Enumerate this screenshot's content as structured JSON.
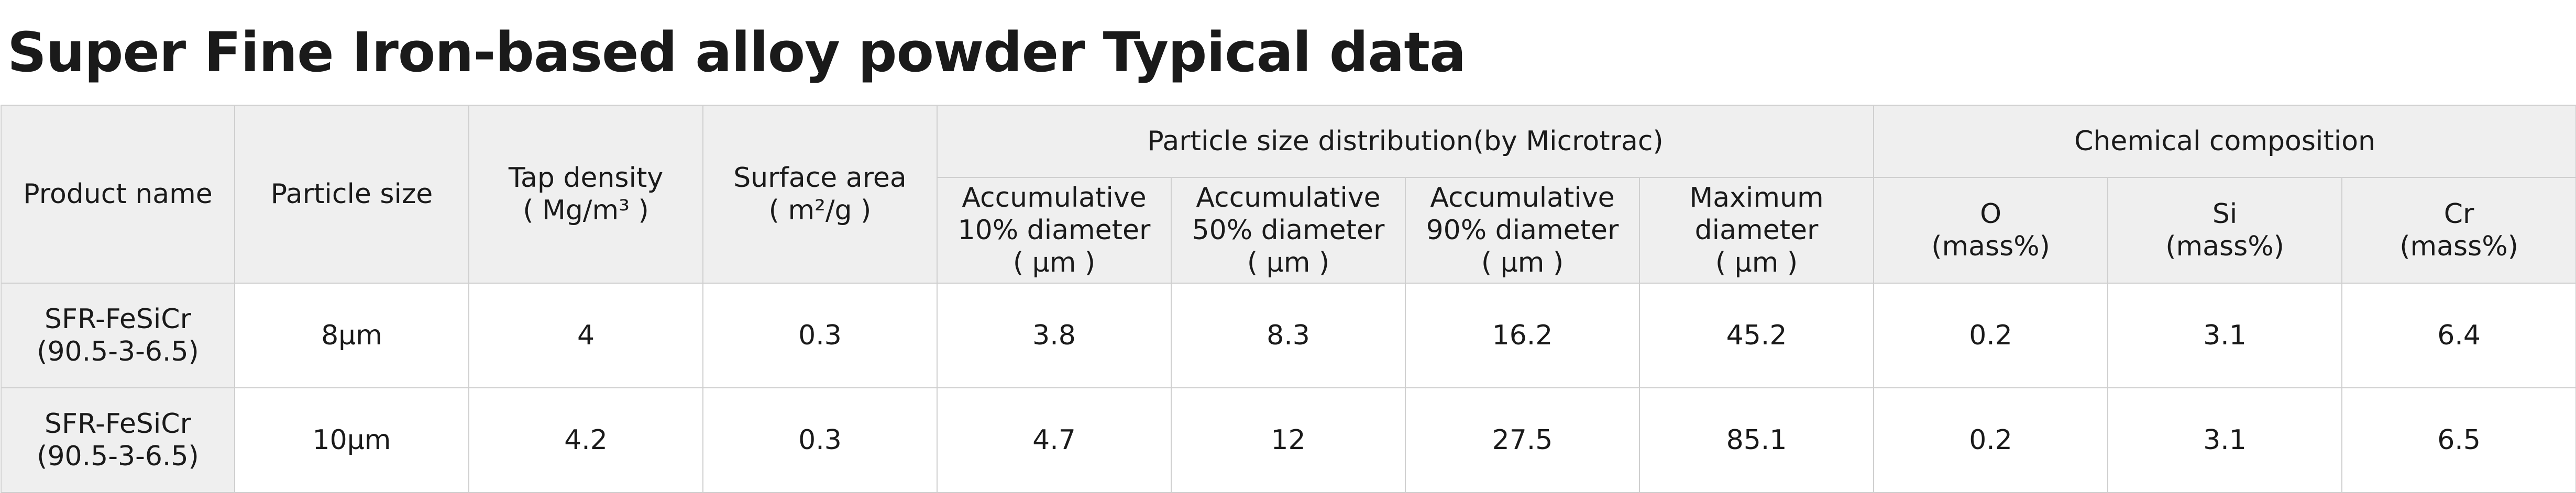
{
  "title": "Super Fine Iron-based alloy powder Typical data",
  "headers": {
    "product_name": "Product name",
    "particle_size": "Particle size",
    "tap_density": "Tap density\n( Mg/m³ )",
    "surface_area": "Surface area\n( m²/g )",
    "psd_group": "Particle size distribution(by Microtrac)",
    "d10": "Accumulative\n10% diameter\n( μm )",
    "d50": "Accumulative\n50% diameter\n( μm )",
    "d90": "Accumulative\n90% diameter\n( μm )",
    "dmax": "Maximum\ndiameter\n( μm )",
    "chem_group": "Chemical composition",
    "o": "O\n(mass%)",
    "si": "Si\n(mass%)",
    "cr": "Cr\n(mass%)"
  },
  "rows": [
    {
      "product_name": "SFR-FeSiCr\n(90.5-3-6.5)",
      "particle_size": "8μm",
      "tap_density": "4",
      "surface_area": "0.3",
      "d10": "3.8",
      "d50": "8.3",
      "d90": "16.2",
      "dmax": "45.2",
      "o": "0.2",
      "si": "3.1",
      "cr": "6.4"
    },
    {
      "product_name": "SFR-FeSiCr\n(90.5-3-6.5)",
      "particle_size": "10μm",
      "tap_density": "4.2",
      "surface_area": "0.3",
      "d10": "4.7",
      "d50": "12",
      "d90": "27.5",
      "dmax": "85.1",
      "o": "0.2",
      "si": "3.1",
      "cr": "6.5"
    }
  ]
}
